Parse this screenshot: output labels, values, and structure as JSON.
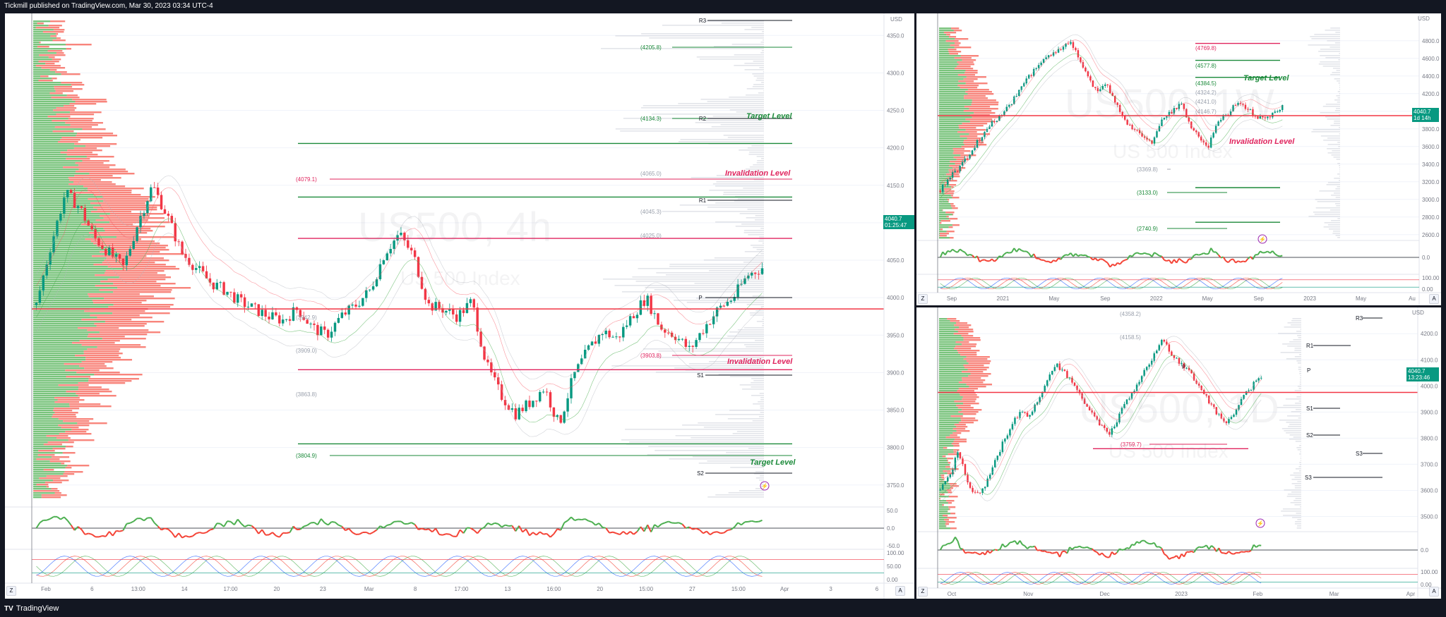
{
  "header": {
    "text": "Tickmill published on TradingView.com, Mar 30, 2023 03:34 UTC-4"
  },
  "footer": {
    "logo": "TV",
    "brand": "TradingView"
  },
  "colors": {
    "up": "#089981",
    "down": "#f23645",
    "bull_bar": "#22ab94",
    "bear_bar": "#f7525f",
    "target": "#1b8a3a",
    "invalidation": "#e0245e",
    "pivot": "#131722"
  },
  "panes": {
    "main": {
      "watermark": "US500, 4h",
      "watermark_sub": "US 500 Index",
      "price_tag": [
        "4040.7",
        "01:25:47"
      ],
      "currency": "USD",
      "corner_left": "Z",
      "corner_right": "A",
      "price_axis": [
        "4350.0",
        "4300.0",
        "4250.0",
        "4200.0",
        "4150.0",
        "4100.0",
        "4050.0",
        "4000.0",
        "3950.0",
        "3900.0",
        "3850.0",
        "3800.0",
        "3750.0"
      ],
      "time_axis": [
        "Feb",
        "6",
        "13:00",
        "14",
        "17:00",
        "20",
        "23",
        "Mar",
        "8",
        "17:00",
        "13",
        "16:00",
        "20",
        "15:00",
        "27",
        "15:00",
        "Apr",
        "3",
        "6"
      ],
      "osc1_axis": [
        "50.0",
        "0.0",
        "-50.0"
      ],
      "osc2_axis": [
        "100.00",
        "50.00",
        "0.00"
      ],
      "level_labels": [
        {
          "text": "R3",
          "kind": "pivot"
        },
        {
          "text": "(4205.8)",
          "kind": "target"
        },
        {
          "text": "(4134.3)",
          "kind": "target"
        },
        {
          "text": "R2",
          "kind": "pivot"
        },
        {
          "text": "Target Level",
          "kind": "target"
        },
        {
          "text": "(4079.1)",
          "kind": "invalidation"
        },
        {
          "text": "(4065.0)",
          "kind": "faint"
        },
        {
          "text": "Invalidation Level",
          "kind": "invalidation"
        },
        {
          "text": "R1",
          "kind": "pivot"
        },
        {
          "text": "(4045.3)",
          "kind": "faint"
        },
        {
          "text": "(4025.0)",
          "kind": "faint"
        },
        {
          "text": "P",
          "kind": "pivot"
        },
        {
          "text": "(3942.9)",
          "kind": "faint"
        },
        {
          "text": "(3909.0)",
          "kind": "faint"
        },
        {
          "text": "(3903.8)",
          "kind": "invalidation"
        },
        {
          "text": "Invalidation Level",
          "kind": "invalidation"
        },
        {
          "text": "S1",
          "kind": "pivot"
        },
        {
          "text": "(3863.8)",
          "kind": "faint"
        },
        {
          "text": "(3804.9)",
          "kind": "target"
        },
        {
          "text": "Target Level",
          "kind": "target"
        },
        {
          "text": "S2",
          "kind": "pivot"
        }
      ]
    },
    "top_right": {
      "watermark": "US500, 1W",
      "watermark_sub": "US 500 Index",
      "price_tag": [
        "4040.7",
        "1d 14h"
      ],
      "currency": "USD",
      "corner_left": "Z",
      "corner_right": "A",
      "price_axis": [
        "4800.0",
        "4600.0",
        "4400.0",
        "4200.0",
        "4000.0",
        "3800.0",
        "3600.0",
        "3400.0",
        "3200.0",
        "3000.0",
        "2800.0",
        "2600.0"
      ],
      "time_axis": [
        "Sep",
        "2021",
        "May",
        "Sep",
        "2022",
        "May",
        "Sep",
        "2023",
        "May",
        "Au"
      ],
      "osc1_axis": [
        "0.0"
      ],
      "osc2_axis": [
        "100.00",
        "0.00"
      ],
      "level_labels": [
        {
          "text": "(4769.8)",
          "kind": "invalidation"
        },
        {
          "text": "(4577.8)",
          "kind": "target"
        },
        {
          "text": "(4384.5)",
          "kind": "target"
        },
        {
          "text": "Target Level",
          "kind": "target"
        },
        {
          "text": "(4324.2)",
          "kind": "faint"
        },
        {
          "text": "(4241.0)",
          "kind": "faint"
        },
        {
          "text": "(4146.7)",
          "kind": "faint"
        },
        {
          "text": "Invalidation Level",
          "kind": "invalidation"
        },
        {
          "text": "(3369.8)",
          "kind": "faint"
        },
        {
          "text": "(3133.0)",
          "kind": "target"
        },
        {
          "text": "(2740.9)",
          "kind": "target"
        }
      ]
    },
    "bottom_right": {
      "watermark": "US500, 1D",
      "watermark_sub": "US 500 Index",
      "price_tag": [
        "4040.7",
        "13:23:46"
      ],
      "currency": "USD",
      "corner_left": "Z",
      "corner_right": "A",
      "price_axis": [
        "4200.0",
        "4100.0",
        "4000.0",
        "3900.0",
        "3800.0",
        "3700.0",
        "3600.0",
        "3500.0"
      ],
      "time_axis": [
        "Oct",
        "Nov",
        "Dec",
        "2023",
        "Feb",
        "Mar",
        "Apr"
      ],
      "osc1_axis": [
        "0.0"
      ],
      "osc2_axis": [
        "100.00",
        "0.00"
      ],
      "level_labels": [
        {
          "text": "(4358.2)",
          "kind": "faint"
        },
        {
          "text": "R3",
          "kind": "pivot"
        },
        {
          "text": "(4158.5)",
          "kind": "faint"
        },
        {
          "text": "R1",
          "kind": "pivot"
        },
        {
          "text": "P",
          "kind": "pivot"
        },
        {
          "text": "P",
          "kind": "pivot"
        },
        {
          "text": "S1",
          "kind": "pivot"
        },
        {
          "text": "S2",
          "kind": "pivot"
        },
        {
          "text": "(3759.7)",
          "kind": "invalidation"
        },
        {
          "text": "S3",
          "kind": "pivot"
        },
        {
          "text": "S3",
          "kind": "pivot"
        }
      ]
    }
  },
  "chart_data": [
    {
      "type": "candlestick",
      "symbol": "US500",
      "timeframe": "4h",
      "ylim": [
        3730,
        4370
      ],
      "last": 4040.7,
      "path": [
        3990,
        4070,
        4140,
        4120,
        4080,
        4060,
        4040,
        4100,
        4150,
        4110,
        4060,
        4040,
        4020,
        4010,
        3995,
        3985,
        3975,
        3970,
        3985,
        3960,
        3950,
        3975,
        3990,
        4010,
        4060,
        4085,
        4055,
        3990,
        3985,
        3975,
        3995,
        3910,
        3870,
        3845,
        3860,
        3880,
        3830,
        3895,
        3930,
        3955,
        3945,
        3975,
        4000,
        3960,
        3950,
        3930,
        3960,
        3985,
        4000,
        4030,
        4040
      ],
      "levels": [
        {
          "value": 4205.8,
          "kind": "target"
        },
        {
          "value": 4134.3,
          "kind": "target"
        },
        {
          "value": 4079.1,
          "kind": "invalidation"
        },
        {
          "value": 3903.8,
          "kind": "invalidation"
        },
        {
          "value": 3804.9,
          "kind": "target"
        }
      ]
    },
    {
      "type": "candlestick",
      "symbol": "US500",
      "timeframe": "1W",
      "ylim": [
        2550,
        4950
      ],
      "last": 4040.7,
      "path": [
        3100,
        3250,
        3350,
        3500,
        3650,
        3800,
        3900,
        4000,
        4150,
        4300,
        4450,
        4550,
        4650,
        4700,
        4780,
        4600,
        4400,
        4200,
        4300,
        4100,
        3900,
        3800,
        3700,
        3650,
        3900,
        4000,
        4100,
        3850,
        3700,
        3600,
        3900,
        3950,
        4100,
        4050,
        3950,
        3900,
        3980,
        4040
      ],
      "levels": [
        {
          "value": 4769.8,
          "kind": "invalidation"
        },
        {
          "value": 4577.8,
          "kind": "target"
        },
        {
          "value": 4384.5,
          "kind": "target"
        },
        {
          "value": 3133.0,
          "kind": "target"
        },
        {
          "value": 2740.9,
          "kind": "target"
        }
      ]
    },
    {
      "type": "candlestick",
      "symbol": "US500",
      "timeframe": "1D",
      "ylim": [
        3450,
        4260
      ],
      "last": 4040.7,
      "path": [
        3600,
        3650,
        3750,
        3640,
        3580,
        3620,
        3700,
        3780,
        3850,
        3900,
        3880,
        3950,
        4020,
        4080,
        4050,
        4000,
        3950,
        3900,
        3850,
        3820,
        3880,
        3950,
        4000,
        4060,
        4120,
        4180,
        4120,
        4080,
        4050,
        4000,
        3950,
        3900,
        3850,
        3900,
        3960,
        4000,
        4040
      ],
      "levels": [
        {
          "value": 3759.7,
          "kind": "invalidation"
        }
      ]
    }
  ]
}
